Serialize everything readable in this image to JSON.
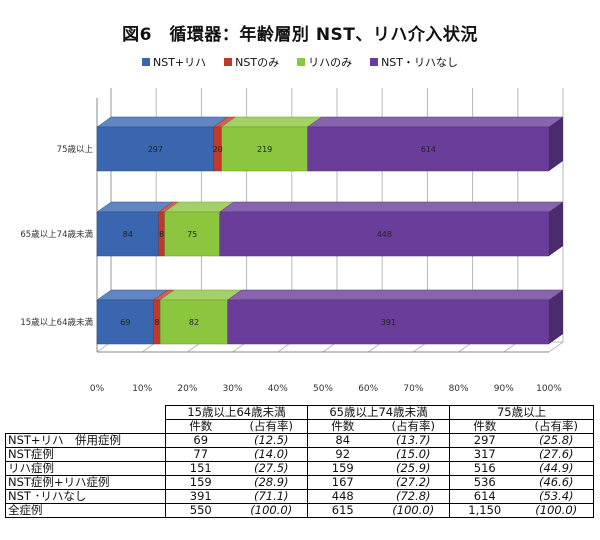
{
  "title": "図6　循環器：年齢層別 NST、リハ介入状況",
  "chart_data": {
    "type": "bar",
    "orientation": "horizontal",
    "stacked": "percent",
    "categories": [
      "75歳以上",
      "65歳以上74歳未満",
      "15歳以上64歳未満"
    ],
    "series": [
      {
        "name": "NST+リハ",
        "color": "#3a66b0",
        "values": [
          297,
          84,
          69
        ]
      },
      {
        "name": "NSTのみ",
        "color": "#c0392b",
        "values": [
          20,
          8,
          8
        ]
      },
      {
        "name": "リハのみ",
        "color": "#8cc63f",
        "values": [
          219,
          75,
          82
        ]
      },
      {
        "name": "NST・リハなし",
        "color": "#6a3d9a",
        "values": [
          614,
          448,
          391
        ]
      }
    ],
    "x_ticks": [
      "0%",
      "10%",
      "20%",
      "30%",
      "40%",
      "50%",
      "60%",
      "70%",
      "80%",
      "90%",
      "100%"
    ],
    "xlim": [
      0,
      100
    ],
    "grid": true,
    "legend_position": "top"
  },
  "table": {
    "groups": [
      "15歳以上64歳未満",
      "65歳以上74歳未満",
      "75歳以上"
    ],
    "subheaders": [
      "件数",
      "(占有率)"
    ],
    "rows": [
      {
        "label": "NST+リハ　併用症例",
        "cells": [
          "69",
          "(12.5)",
          "84",
          "(13.7)",
          "297",
          "(25.8)"
        ]
      },
      {
        "label": "NST症例",
        "cells": [
          "77",
          "(14.0)",
          "92",
          "(15.0)",
          "317",
          "(27.6)"
        ]
      },
      {
        "label": "リハ症例",
        "cells": [
          "151",
          "(27.5)",
          "159",
          "(25.9)",
          "516",
          "(44.9)"
        ]
      },
      {
        "label": "NST症例+リハ症例",
        "cells": [
          "159",
          "(28.9)",
          "167",
          "(27.2)",
          "536",
          "(46.6)"
        ]
      },
      {
        "label": "NST ･リハなし",
        "cells": [
          "391",
          "(71.1)",
          "448",
          "(72.8)",
          "614",
          "(53.4)"
        ]
      },
      {
        "label": "全症例",
        "cells": [
          "550",
          "(100.0)",
          "615",
          "(100.0)",
          "1,150",
          "(100.0)"
        ]
      }
    ]
  }
}
